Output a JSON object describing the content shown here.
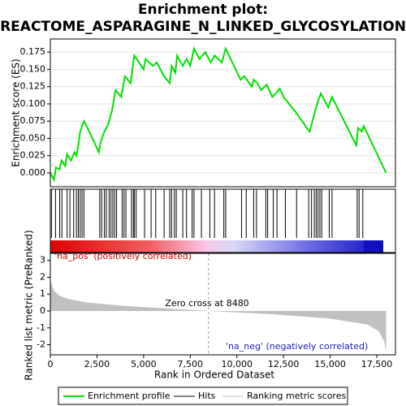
{
  "chart_data": [
    {
      "type": "line",
      "title": [
        "Enrichment plot:",
        "REACTOME_ASPARAGINE_N_LINKED_GLYCOSYLATION"
      ],
      "ylabel": "Enrichment score (ES)",
      "xlim": [
        0,
        18500
      ],
      "ylim": [
        -0.02,
        0.194
      ],
      "yticks": [
        {
          "value": 0,
          "label": "0.000"
        },
        {
          "value": 0.025,
          "label": "0.025"
        },
        {
          "value": 0.05,
          "label": "0.050"
        },
        {
          "value": 0.075,
          "label": "0.075"
        },
        {
          "value": 0.1,
          "label": "0.100"
        },
        {
          "value": 0.125,
          "label": "0.125"
        },
        {
          "value": 0.15,
          "label": "0.150"
        },
        {
          "value": 0.175,
          "label": "0.175"
        }
      ],
      "grid": true,
      "x": [
        0,
        200,
        300,
        500,
        600,
        800,
        900,
        1100,
        1300,
        1400,
        1500,
        1600,
        1800,
        2000,
        2600,
        2700,
        2900,
        3100,
        3300,
        3500,
        3800,
        4000,
        4300,
        4500,
        5000,
        5100,
        5500,
        5700,
        6100,
        6400,
        6500,
        6700,
        6800,
        7100,
        7300,
        7500,
        7700,
        8000,
        8300,
        8600,
        8800,
        9200,
        9400,
        10200,
        10400,
        10800,
        10900,
        11100,
        11300,
        11600,
        11900,
        12300,
        12500,
        12800,
        13100,
        13900,
        14100,
        14300,
        14500,
        14900,
        15100,
        16400,
        16500,
        16700,
        16800,
        18000
      ],
      "series": [
        {
          "name": "Enrichment profile",
          "color": "#00e000",
          "values": [
            0,
            -0.01,
            0.008,
            0.005,
            0.018,
            0.01,
            0.027,
            0.018,
            0.03,
            0.025,
            0.04,
            0.06,
            0.075,
            0.065,
            0.03,
            0.045,
            0.06,
            0.07,
            0.09,
            0.12,
            0.11,
            0.14,
            0.13,
            0.17,
            0.15,
            0.165,
            0.155,
            0.16,
            0.14,
            0.13,
            0.155,
            0.145,
            0.17,
            0.155,
            0.165,
            0.155,
            0.18,
            0.165,
            0.175,
            0.16,
            0.17,
            0.16,
            0.18,
            0.135,
            0.14,
            0.125,
            0.135,
            0.13,
            0.12,
            0.128,
            0.11,
            0.122,
            0.11,
            0.1,
            0.09,
            0.06,
            0.08,
            0.1,
            0.115,
            0.095,
            0.11,
            0.04,
            0.065,
            0.06,
            0.068,
            0
          ]
        }
      ]
    },
    {
      "type": "rug",
      "xlim": [
        0,
        18500
      ],
      "series": [
        {
          "name": "Hits",
          "color": "#000000",
          "values": [
            60,
            280,
            500,
            620,
            900,
            1050,
            1250,
            1400,
            1500,
            1600,
            1700,
            1800,
            2650,
            2750,
            2900,
            3000,
            3150,
            3250,
            3350,
            3450,
            3550,
            3850,
            3950,
            4050,
            4350,
            4450,
            4500,
            4600,
            5050,
            5400,
            5650,
            6100,
            6400,
            6500,
            6650,
            6750,
            7100,
            7300,
            7600,
            7700,
            8100,
            8550,
            8800,
            9300,
            9400,
            10250,
            10500,
            10900,
            11050,
            11550,
            11650,
            11950,
            12150,
            12600,
            13200,
            13850,
            14000,
            14150,
            14250,
            14350,
            14450,
            14550,
            14950,
            15100,
            16450,
            16550,
            16750
          ]
        }
      ]
    },
    {
      "type": "area",
      "ylabel": "Ranked list metric (PreRanked)",
      "xlabel": "Rank in Ordered Dataset",
      "xlim": [
        0,
        18500
      ],
      "ylim": [
        -2.6,
        3.42
      ],
      "xticks": [
        0,
        {
          "value": 2500,
          "label": "2,500"
        },
        {
          "value": 5000,
          "label": "5,000"
        },
        {
          "value": 7500,
          "label": "7,500"
        },
        {
          "value": 10000,
          "label": "10,000"
        },
        {
          "value": 12500,
          "label": "12,500"
        },
        {
          "value": 15000,
          "label": "15,000"
        },
        {
          "value": 17500,
          "label": "17,500"
        }
      ],
      "yticks": [
        3,
        2,
        1,
        0,
        -1,
        -2
      ],
      "x": [
        0,
        200,
        500,
        1000,
        2000,
        4000,
        8480,
        12000,
        15000,
        17000,
        17600,
        17900,
        18000
      ],
      "series": [
        {
          "name": "Ranking metric scores",
          "color": "#c0c0c0",
          "values": [
            1.8,
            1.2,
            0.9,
            0.7,
            0.5,
            0.3,
            0,
            -0.2,
            -0.45,
            -0.8,
            -1.2,
            -1.8,
            -2.4
          ]
        }
      ],
      "zero_cross": 8480,
      "annotations": [
        "'na_pos' (positively correlated)",
        "Zero cross at 8480",
        "'na_neg' (negatively correlated)"
      ]
    }
  ]
}
